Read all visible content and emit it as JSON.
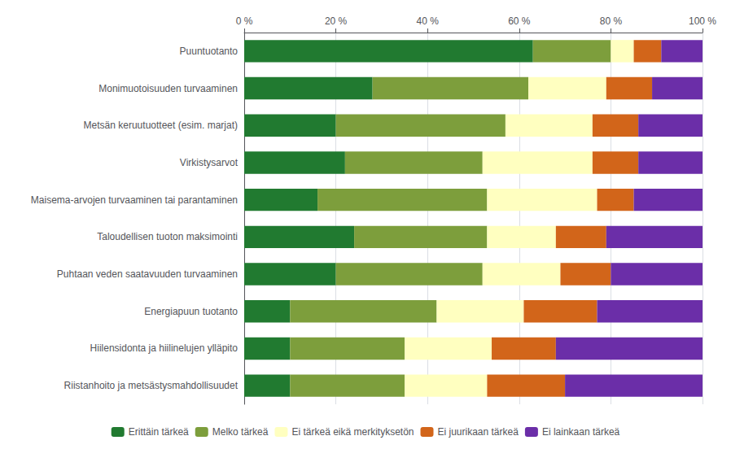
{
  "chart_data": {
    "type": "bar",
    "orientation": "horizontal",
    "stacked": true,
    "categories": [
      "Puuntuotanto",
      "Monimuotoisuuden turvaaminen",
      "Metsän keruutuotteet (esim. marjat)",
      "Virkistysarvot",
      "Maisema-arvojen turvaaminen tai parantaminen",
      "Taloudellisen tuoton maksimointi",
      "Puhtaan veden saatavuuden turvaaminen",
      "Energiapuun tuotanto",
      "Hiilensidonta ja hiilinelujen ylläpito",
      "Riistanhoito ja metsästysmahdollisuudet"
    ],
    "series": [
      {
        "name": "Erittäin tärkeä",
        "color": "#217A30",
        "values": [
          63,
          28,
          20,
          22,
          16,
          24,
          20,
          10,
          10,
          10
        ]
      },
      {
        "name": "Melko tärkeä",
        "color": "#7D9E3C",
        "values": [
          17,
          34,
          37,
          30,
          37,
          29,
          32,
          32,
          25,
          25
        ]
      },
      {
        "name": "Ei tärkeä eikä merkityksetön",
        "color": "#FFFFC0",
        "values": [
          5,
          17,
          19,
          24,
          24,
          15,
          17,
          19,
          19,
          18
        ]
      },
      {
        "name": "Ei juurikaan tärkeä",
        "color": "#D2651A",
        "values": [
          6,
          10,
          10,
          10,
          8,
          11,
          11,
          16,
          14,
          17
        ]
      },
      {
        "name": "Ei lainkaan tärkeä",
        "color": "#6B2EA8",
        "values": [
          9,
          11,
          14,
          14,
          15,
          21,
          20,
          23,
          32,
          30
        ]
      }
    ],
    "xlim": [
      0,
      100
    ],
    "xticks": [
      {
        "value": 0,
        "label": "0 %"
      },
      {
        "value": 20,
        "label": "20 %"
      },
      {
        "value": 40,
        "label": "40 %"
      },
      {
        "value": 60,
        "label": "60 %"
      },
      {
        "value": 80,
        "label": "80 %"
      },
      {
        "value": 100,
        "label": "100 %"
      }
    ],
    "grid": true,
    "legend": "bottom"
  }
}
